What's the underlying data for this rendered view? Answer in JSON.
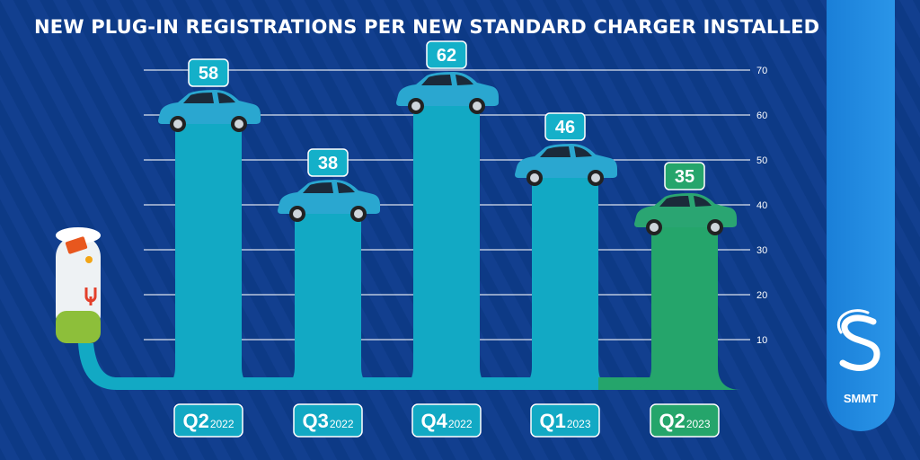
{
  "header": {
    "title": "NEW PLUG-IN REGISTRATIONS PER NEW STANDARD CHARGER INSTALLED"
  },
  "brand": {
    "name": "SMMT"
  },
  "chart_data": {
    "type": "bar",
    "title": "NEW PLUG-IN REGISTRATIONS PER NEW STANDARD CHARGER INSTALLED",
    "categories": [
      {
        "quarter": "Q2",
        "year": "2022"
      },
      {
        "quarter": "Q3",
        "year": "2022"
      },
      {
        "quarter": "Q4",
        "year": "2022"
      },
      {
        "quarter": "Q1",
        "year": "2023"
      },
      {
        "quarter": "Q2",
        "year": "2023"
      }
    ],
    "values": [
      58,
      38,
      62,
      46,
      35
    ],
    "ylim": [
      0,
      70
    ],
    "yticks": [
      10,
      20,
      30,
      40,
      50,
      60,
      70
    ],
    "grid": true,
    "colors": {
      "bar": "#12a9c4",
      "bar_highlight": "#25a56b",
      "label_bg": "#14b0c9",
      "label_bg_highlight": "#25a56b",
      "car": "#2aa7d0",
      "car_highlight": "#2aa572",
      "gridline": "#ffffff"
    }
  }
}
